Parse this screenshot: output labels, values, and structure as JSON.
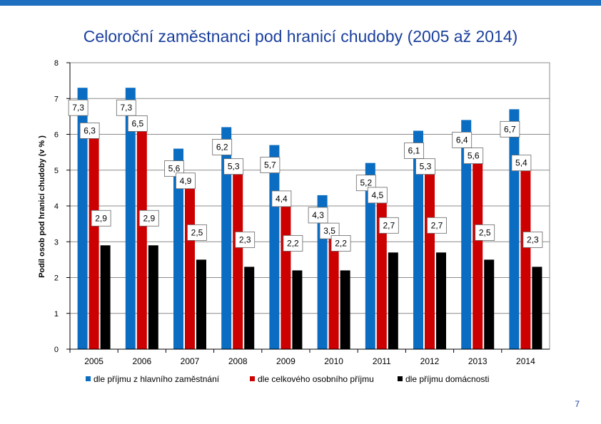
{
  "slide": {
    "title": "Celoroční zaměstnanci pod hranicí chudoby (2005 až 2014)",
    "page_number": "7"
  },
  "colors": {
    "accent_bar": "#1f6fc0",
    "series": [
      "#0a6dc2",
      "#cc0000",
      "#000000"
    ]
  },
  "chart_data": {
    "type": "bar",
    "title": "Celoroční zaměstnanci pod hranicí chudoby (2005 až 2014)",
    "xlabel": "",
    "ylabel": "Podíl osob pod hranicí chudoby (v % )",
    "ylim": [
      0,
      8
    ],
    "yticks": [
      "0",
      "1",
      "2",
      "3",
      "4",
      "5",
      "6",
      "7",
      "8"
    ],
    "grid": true,
    "legend_position": "bottom",
    "categories": [
      "2005",
      "2006",
      "2007",
      "2008",
      "2009",
      "2010",
      "2011",
      "2012",
      "2013",
      "2014"
    ],
    "series": [
      {
        "name": "dle příjmu z hlavního zaměstnání",
        "values": [
          7.3,
          7.3,
          5.6,
          6.2,
          5.7,
          4.3,
          5.2,
          6.1,
          6.4,
          6.7
        ],
        "labels": [
          "7,3",
          "7,3",
          "5,6",
          "6,2",
          "5,7",
          "4,3",
          "5,2",
          "6,1",
          "6,4",
          "6,7"
        ]
      },
      {
        "name": "dle celkového osobního příjmu",
        "values": [
          6.3,
          6.5,
          4.9,
          5.3,
          4.4,
          3.5,
          4.5,
          5.3,
          5.6,
          5.4
        ],
        "labels": [
          "6,3",
          "6,5",
          "4,9",
          "5,3",
          "4,4",
          "3,5",
          "4,5",
          "5,3",
          "5,6",
          "5,4"
        ]
      },
      {
        "name": "dle příjmu domácnosti",
        "values": [
          2.9,
          2.9,
          2.5,
          2.3,
          2.2,
          2.2,
          2.7,
          2.7,
          2.5,
          2.3
        ],
        "labels": [
          "2,9",
          "2,9",
          "2,5",
          "2,3",
          "2,2",
          "2,2",
          "2,7",
          "2,7",
          "2,5",
          "2,3"
        ]
      }
    ]
  }
}
